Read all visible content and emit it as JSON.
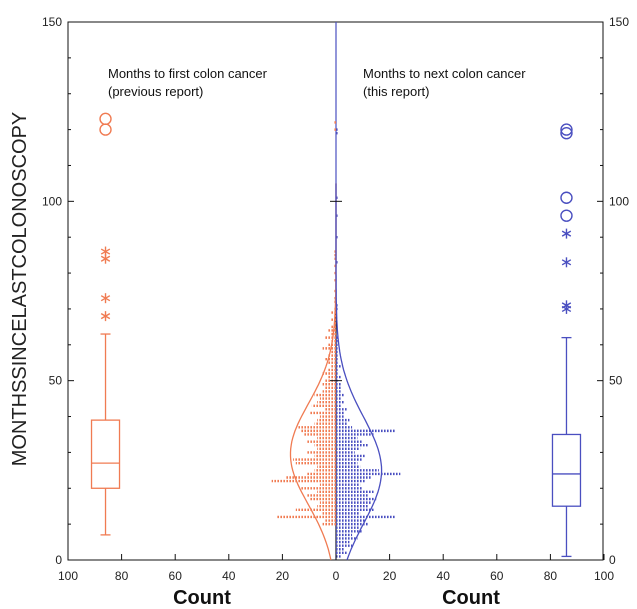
{
  "chart_data": {
    "type": "back-to-back histogram with box plots",
    "ylabel": "MONTHSSINCELASTCOLONOSCOPY",
    "ylim": [
      0,
      150
    ],
    "yticks": [
      0,
      50,
      100,
      150
    ],
    "xlabel_left": "Count",
    "xlabel_right": "Count",
    "xticks_left": [
      100,
      80,
      60,
      40,
      20,
      0
    ],
    "xticks_right": [
      20,
      40,
      60,
      80,
      100
    ],
    "xlim": [
      0,
      100
    ],
    "annotations": {
      "left_line1": "Months to first colon cancer",
      "left_line2": "(previous report)",
      "right_line1": "Months to next colon cancer",
      "right_line2": "(this report)"
    },
    "colors": {
      "left": "#f07b52",
      "right": "#4a4fc0",
      "axis": "#111111"
    },
    "series": [
      {
        "side": "left",
        "histogram": {
          "bin_width_months": 1,
          "months": [
            10,
            11,
            12,
            13,
            14,
            15,
            16,
            17,
            18,
            19,
            20,
            21,
            22,
            23,
            24,
            25,
            26,
            27,
            28,
            29,
            30,
            31,
            32,
            33,
            34,
            35,
            36,
            37,
            38,
            39,
            40,
            41,
            42,
            43,
            44,
            45,
            46,
            47,
            48,
            49,
            50,
            51,
            52,
            53,
            54,
            55,
            56,
            57,
            58,
            59,
            60,
            61,
            62,
            63,
            64,
            65,
            66,
            67,
            68,
            69,
            70,
            72,
            73,
            75,
            78,
            80,
            82,
            84,
            85,
            86,
            120,
            122
          ],
          "counts": [
            5,
            4,
            22,
            5,
            15,
            7,
            6,
            10,
            11,
            7,
            13,
            6,
            24,
            19,
            11,
            8,
            7,
            15,
            16,
            8,
            11,
            7,
            8,
            11,
            7,
            12,
            13,
            14,
            8,
            7,
            6,
            10,
            4,
            9,
            7,
            6,
            8,
            5,
            4,
            5,
            4,
            3,
            5,
            3,
            2,
            3,
            4,
            3,
            2,
            5,
            3,
            2,
            4,
            2,
            3,
            2,
            1,
            2,
            1,
            2,
            1,
            1,
            1,
            1,
            1,
            1,
            1,
            1,
            1,
            1,
            1,
            1
          ]
        },
        "boxplot": {
          "whisker_low": 7,
          "q1": 20,
          "median": 27,
          "q3": 39,
          "whisker_high": 63,
          "outliers_star": [
            68,
            73,
            84,
            86
          ],
          "outliers_circle": [
            120,
            123
          ]
        }
      },
      {
        "side": "right",
        "histogram": {
          "bin_width_months": 1,
          "months": [
            1,
            2,
            3,
            4,
            5,
            6,
            7,
            8,
            9,
            10,
            11,
            12,
            13,
            14,
            15,
            16,
            17,
            18,
            19,
            20,
            21,
            22,
            23,
            24,
            25,
            26,
            27,
            28,
            29,
            30,
            31,
            32,
            33,
            34,
            35,
            36,
            37,
            38,
            39,
            40,
            41,
            42,
            43,
            44,
            45,
            46,
            47,
            48,
            49,
            50,
            51,
            52,
            53,
            54,
            55,
            56,
            57,
            58,
            59,
            60,
            61,
            62,
            70,
            71,
            83,
            90,
            96,
            101,
            119,
            120
          ],
          "counts": [
            2,
            4,
            3,
            6,
            5,
            8,
            6,
            10,
            9,
            12,
            11,
            22,
            9,
            14,
            12,
            13,
            15,
            12,
            14,
            10,
            9,
            11,
            13,
            24,
            16,
            9,
            8,
            10,
            11,
            7,
            9,
            12,
            10,
            8,
            14,
            22,
            6,
            4,
            5,
            3,
            3,
            4,
            2,
            3,
            2,
            3,
            2,
            2,
            2,
            1,
            2,
            1,
            1,
            2,
            1,
            1,
            1,
            1,
            1,
            1,
            1,
            1,
            1,
            1,
            1,
            1,
            1,
            1,
            1,
            1
          ]
        },
        "boxplot": {
          "whisker_low": 1,
          "q1": 15,
          "median": 24,
          "q3": 35,
          "whisker_high": 62,
          "outliers_star": [
            70,
            71,
            83,
            91
          ],
          "outliers_circle": [
            96,
            101,
            119,
            120
          ]
        }
      }
    ]
  }
}
